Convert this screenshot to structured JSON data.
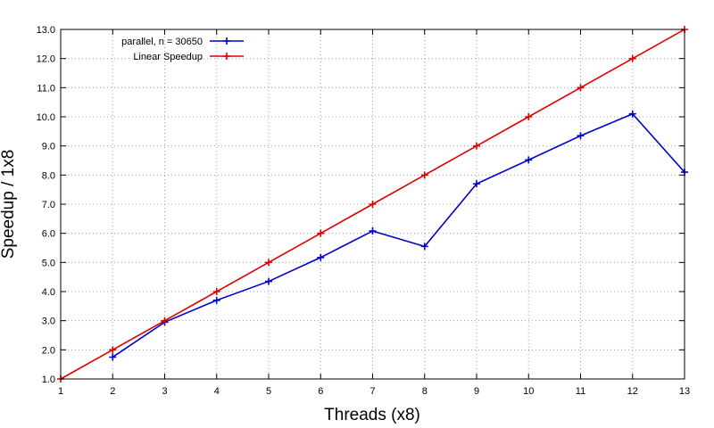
{
  "chart_data": {
    "type": "line",
    "title": "",
    "xlabel": "Threads (x8)",
    "ylabel": "Speedup / 1x8",
    "xlim": [
      1,
      13
    ],
    "ylim": [
      1.0,
      13.0
    ],
    "x_ticks": [
      "1",
      "2",
      "3",
      "4",
      "5",
      "6",
      "7",
      "8",
      "9",
      "10",
      "11",
      "12",
      "13"
    ],
    "y_ticks": [
      "1.0",
      "2.0",
      "3.0",
      "4.0",
      "5.0",
      "6.0",
      "7.0",
      "8.0",
      "9.0",
      "10.0",
      "11.0",
      "12.0",
      "13.0"
    ],
    "grid": true,
    "legend_position": "top-left",
    "series": [
      {
        "name": "parallel, n = 30650",
        "color": "#0000cc",
        "x": [
          2,
          3,
          4,
          5,
          6,
          7,
          8,
          9,
          10,
          11,
          12,
          13
        ],
        "y": [
          1.75,
          2.95,
          3.7,
          4.35,
          5.17,
          6.08,
          5.55,
          7.7,
          8.52,
          9.35,
          10.1,
          8.1
        ]
      },
      {
        "name": "Linear Speedup",
        "color": "#dd0000",
        "x": [
          1,
          2,
          3,
          4,
          5,
          6,
          7,
          8,
          9,
          10,
          11,
          12,
          13
        ],
        "y": [
          1,
          2,
          3,
          4,
          5,
          6,
          7,
          8,
          9,
          10,
          11,
          12,
          13
        ]
      }
    ]
  }
}
